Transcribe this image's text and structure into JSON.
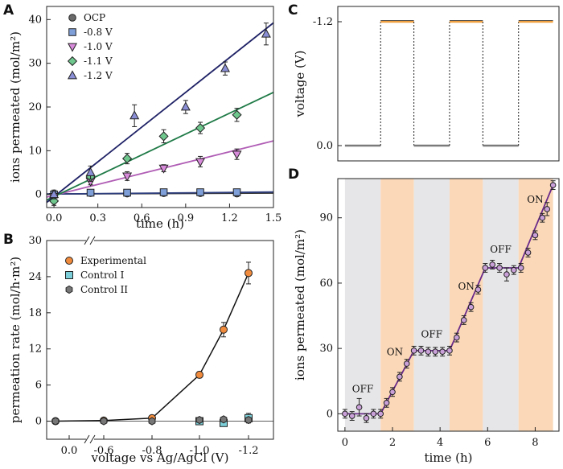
{
  "panels": {
    "A": "A",
    "B": "B",
    "C": "C",
    "D": "D"
  },
  "chart_data": [
    {
      "panel": "A",
      "type": "scatter",
      "xlabel": "time (h)",
      "ylabel": "ions permeated (mol/m²)",
      "xlim": [
        -0.05,
        1.5
      ],
      "ylim": [
        -3,
        43
      ],
      "xticks": [
        "0.0",
        "0.3",
        "0.6",
        "0.9",
        "1.2",
        "1.5"
      ],
      "xtick_values": [
        0,
        0.3,
        0.6,
        0.9,
        1.2,
        1.5
      ],
      "yticks": [
        "0",
        "10",
        "20",
        "30",
        "40"
      ],
      "ytick_values": [
        0,
        10,
        20,
        30,
        40
      ],
      "legend_position": "top-left",
      "series": [
        {
          "name": "OCP",
          "marker": "circle",
          "color": "#6b6b6b",
          "line_color": "#333333",
          "x": [
            0,
            0.25,
            0.5,
            0.75,
            1.0,
            1.25
          ],
          "y": [
            0,
            0.3,
            0.2,
            0.3,
            0.3,
            0.2
          ],
          "err": [
            0.5,
            0.4,
            0.3,
            0.3,
            0.3,
            0.3
          ],
          "fit_slope": 0.15,
          "fit_intercept": 0.1
        },
        {
          "name": "-0.8 V",
          "marker": "square",
          "color": "#7f9fd8",
          "line_color": "#2e3e7e",
          "x": [
            0,
            0.25,
            0.5,
            0.75,
            1.0,
            1.25
          ],
          "y": [
            0,
            0.4,
            0.4,
            0.5,
            0.5,
            0.5
          ],
          "err": [
            0.5,
            0.3,
            0.3,
            0.3,
            0.3,
            0.3
          ],
          "fit_slope": 0.3,
          "fit_intercept": 0.1
        },
        {
          "name": "-1.0 V",
          "marker": "triangle-down",
          "color": "#d78ad9",
          "line_color": "#b05db5",
          "x": [
            0,
            0.25,
            0.5,
            0.75,
            1.0,
            1.25
          ],
          "y": [
            -0.5,
            3.0,
            4.2,
            6.0,
            7.5,
            9.2
          ],
          "err": [
            1.0,
            0.8,
            1.0,
            0.8,
            1.2,
            1.2
          ],
          "fit_slope": 8.3,
          "fit_intercept": -0.2
        },
        {
          "name": "-1.1 V",
          "marker": "diamond",
          "color": "#6fc78e",
          "line_color": "#1f7a47",
          "x": [
            0,
            0.25,
            0.5,
            0.75,
            1.0,
            1.25
          ],
          "y": [
            -1.5,
            4.0,
            8.2,
            13.3,
            15.2,
            18.2
          ],
          "err": [
            1.0,
            1.0,
            1.2,
            1.5,
            1.3,
            1.5
          ],
          "fit_slope": 15.9,
          "fit_intercept": -0.5
        },
        {
          "name": "-1.2 V",
          "marker": "triangle-up",
          "color": "#8a8fd6",
          "line_color": "#1f2266",
          "x": [
            0,
            0.25,
            0.55,
            0.9,
            1.17,
            1.45
          ],
          "y": [
            0,
            5.0,
            18.0,
            20.0,
            28.8,
            36.7
          ],
          "err": [
            1.0,
            1.5,
            2.5,
            1.5,
            1.5,
            2.5
          ],
          "fit_slope": 26.5,
          "fit_intercept": -0.5
        }
      ]
    },
    {
      "panel": "B",
      "type": "scatter",
      "xlabel": "voltage vs Ag/AgCl (V)",
      "ylabel": "permeation rate (mol/h·m²)",
      "ylim": [
        -3,
        30
      ],
      "xticks": [
        "0.0",
        "-0.6",
        "-0.8",
        "-1.0",
        "-1.2"
      ],
      "xtick_values": [
        0.0,
        -0.6,
        -0.8,
        -1.0,
        -1.2
      ],
      "yticks": [
        "0",
        "6",
        "12",
        "18",
        "24",
        "30"
      ],
      "ytick_values": [
        0,
        6,
        12,
        18,
        24,
        30
      ],
      "axis_break": true,
      "legend_position": "top-left",
      "series": [
        {
          "name": "Experimental",
          "marker": "circle",
          "color": "#f08a3c",
          "x": [
            0.0,
            -0.6,
            -0.8,
            -1.0,
            -1.1,
            -1.2
          ],
          "y": [
            0,
            0.1,
            0.5,
            7.7,
            15.2,
            24.6
          ],
          "err": [
            0.2,
            0.2,
            0.3,
            0.5,
            1.2,
            1.8
          ]
        },
        {
          "name": "Control I",
          "marker": "square",
          "color": "#7ccfd8",
          "x": [
            -1.0,
            -1.1,
            -1.2
          ],
          "y": [
            0,
            -0.3,
            0.5
          ],
          "err": [
            0.2,
            0.3,
            0.8
          ]
        },
        {
          "name": "Control II",
          "marker": "hexagon",
          "color": "#777777",
          "x": [
            0.0,
            -0.6,
            -0.8,
            -1.0,
            -1.1,
            -1.2
          ],
          "y": [
            0,
            0,
            0,
            0.2,
            0.3,
            0.2
          ],
          "err": [
            0.2,
            0.2,
            0.2,
            0.2,
            0.2,
            0.2
          ]
        }
      ]
    },
    {
      "panel": "C",
      "type": "line",
      "ylabel": "voltage  (V)",
      "yticks": [
        "-1.2",
        "0.0"
      ],
      "ytick_values": [
        -1.2,
        0.0
      ],
      "x_shared_with": "D",
      "x": [
        0,
        1.5,
        1.5,
        2.9,
        2.9,
        4.4,
        4.4,
        5.8,
        5.8,
        7.3,
        7.3,
        8.75
      ],
      "y": [
        0,
        0,
        -1.2,
        -1.2,
        0,
        0,
        -1.2,
        -1.2,
        0,
        0,
        -1.2,
        -1.2
      ],
      "off_color": "#7a7a7a",
      "on_color": "#f0a040"
    },
    {
      "panel": "D",
      "type": "scatter",
      "xlabel": "time (h)",
      "ylabel": "ions permeated (mol/m²)",
      "xlim": [
        -0.3,
        9.0
      ],
      "ylim": [
        -8,
        108
      ],
      "xticks": [
        "0",
        "2",
        "4",
        "6",
        "8"
      ],
      "xtick_values": [
        0,
        2,
        4,
        6,
        8
      ],
      "yticks": [
        "0",
        "30",
        "60",
        "90"
      ],
      "ytick_values": [
        0,
        30,
        60,
        90
      ],
      "bands": [
        {
          "state": "OFF",
          "from": 0,
          "to": 1.5,
          "color": "#e6e6e8"
        },
        {
          "state": "ON",
          "from": 1.5,
          "to": 2.9,
          "color": "#fbd8b8"
        },
        {
          "state": "OFF",
          "from": 2.9,
          "to": 4.4,
          "color": "#e6e6e8"
        },
        {
          "state": "ON",
          "from": 4.4,
          "to": 5.8,
          "color": "#fbd8b8"
        },
        {
          "state": "OFF",
          "from": 5.8,
          "to": 7.3,
          "color": "#e6e6e8"
        },
        {
          "state": "ON",
          "from": 7.3,
          "to": 8.75,
          "color": "#fbd8b8"
        }
      ],
      "labels": [
        {
          "text": "OFF",
          "x": 0.75,
          "y": 10
        },
        {
          "text": "ON",
          "x": 2.1,
          "y": 27
        },
        {
          "text": "OFF",
          "x": 3.65,
          "y": 35
        },
        {
          "text": "ON",
          "x": 5.1,
          "y": 57
        },
        {
          "text": "OFF",
          "x": 6.55,
          "y": 74
        },
        {
          "text": "ON",
          "x": 8.0,
          "y": 97
        }
      ],
      "series": [
        {
          "name": "ions",
          "marker": "circle",
          "color": "#c9a0d8",
          "line_color": "#6a2a8a",
          "x": [
            0,
            0.3,
            0.6,
            0.9,
            1.2,
            1.5,
            1.75,
            2.0,
            2.3,
            2.6,
            2.9,
            3.2,
            3.5,
            3.8,
            4.1,
            4.4,
            4.7,
            5.0,
            5.3,
            5.6,
            5.9,
            6.2,
            6.5,
            6.8,
            7.1,
            7.4,
            7.7,
            8.0,
            8.3,
            8.5,
            8.75
          ],
          "y": [
            0,
            -1,
            3,
            -2,
            0,
            0,
            5,
            10,
            17,
            23,
            29,
            29,
            28.5,
            28.5,
            28.5,
            29,
            35,
            43,
            49,
            57,
            67,
            68.5,
            67,
            64,
            66,
            67,
            74,
            82,
            90,
            94,
            105
          ],
          "err": [
            2,
            2,
            4,
            2,
            2,
            2,
            2,
            2,
            2,
            2,
            2,
            2,
            2,
            2,
            2,
            2,
            2,
            2,
            2,
            2,
            2,
            2,
            2,
            3,
            2,
            2,
            2,
            2,
            2,
            3,
            2
          ],
          "fit_x": [
            0,
            1.5,
            2.9,
            4.4,
            5.9,
            7.3,
            8.75
          ],
          "fit_y": [
            0,
            0,
            29,
            29,
            67,
            67,
            105
          ]
        }
      ]
    }
  ]
}
